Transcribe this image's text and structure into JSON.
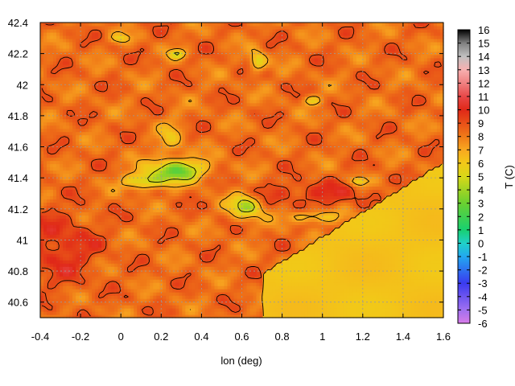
{
  "chart_data": {
    "type": "heatmap",
    "xlabel": "lon (deg)",
    "ylabel": "",
    "colorbar_label": "T (C)",
    "xlim": [
      -0.4,
      1.6
    ],
    "ylim": [
      40.5,
      42.4
    ],
    "x_ticks": [
      "-0.4",
      "-0.2",
      "0",
      "0.2",
      "0.4",
      "0.6",
      "0.8",
      "1",
      "1.2",
      "1.4",
      "1.6"
    ],
    "y_ticks": [
      "40.6",
      "40.8",
      "41",
      "41.2",
      "41.4",
      "41.6",
      "41.8",
      "42",
      "42.2",
      "42.4"
    ],
    "colorbar_range": [
      -6,
      16
    ],
    "colorbar_ticks": [
      "16",
      "15",
      "14",
      "13",
      "12",
      "11",
      "10",
      "9",
      "8",
      "7",
      "6",
      "5",
      "4",
      "3",
      "2",
      "1",
      "0",
      "-1",
      "-2",
      "-3",
      "-4",
      "-5",
      "-6"
    ],
    "colormap": [
      {
        "t": -6,
        "color": "#d87be8"
      },
      {
        "t": -5,
        "color": "#a070f0"
      },
      {
        "t": -3,
        "color": "#3a3af0"
      },
      {
        "t": -1,
        "color": "#22a8f0"
      },
      {
        "t": 0,
        "color": "#20d0c8"
      },
      {
        "t": 1,
        "color": "#18d070"
      },
      {
        "t": 3,
        "color": "#6ad030"
      },
      {
        "t": 5,
        "color": "#d8d818"
      },
      {
        "t": 6,
        "color": "#f2c818"
      },
      {
        "t": 7,
        "color": "#f8a820"
      },
      {
        "t": 8,
        "color": "#f07a18"
      },
      {
        "t": 9,
        "color": "#e85018"
      },
      {
        "t": 10,
        "color": "#e02818"
      },
      {
        "t": 11,
        "color": "#e84848"
      },
      {
        "t": 12,
        "color": "#f08080"
      },
      {
        "t": 13,
        "color": "#f8b0b0"
      },
      {
        "t": 14,
        "color": "#c0c0c0"
      },
      {
        "t": 15,
        "color": "#808080"
      },
      {
        "t": 16,
        "color": "#000000"
      }
    ],
    "grid": true,
    "contours": true,
    "legend": "colorbar-right",
    "features": {
      "sea_region": {
        "lon_from": 0.7,
        "lat_to": 40.9,
        "temperature": 6.2
      },
      "cold_valley": {
        "center": [
          0.28,
          41.45
        ],
        "temperature": 2.0
      },
      "warm_west_lowland": {
        "center": [
          -0.3,
          40.95
        ],
        "temperature": 10.2
      },
      "warm_coastal_ridge": {
        "center": [
          0.95,
          41.3
        ],
        "temperature": 9.8
      }
    }
  }
}
